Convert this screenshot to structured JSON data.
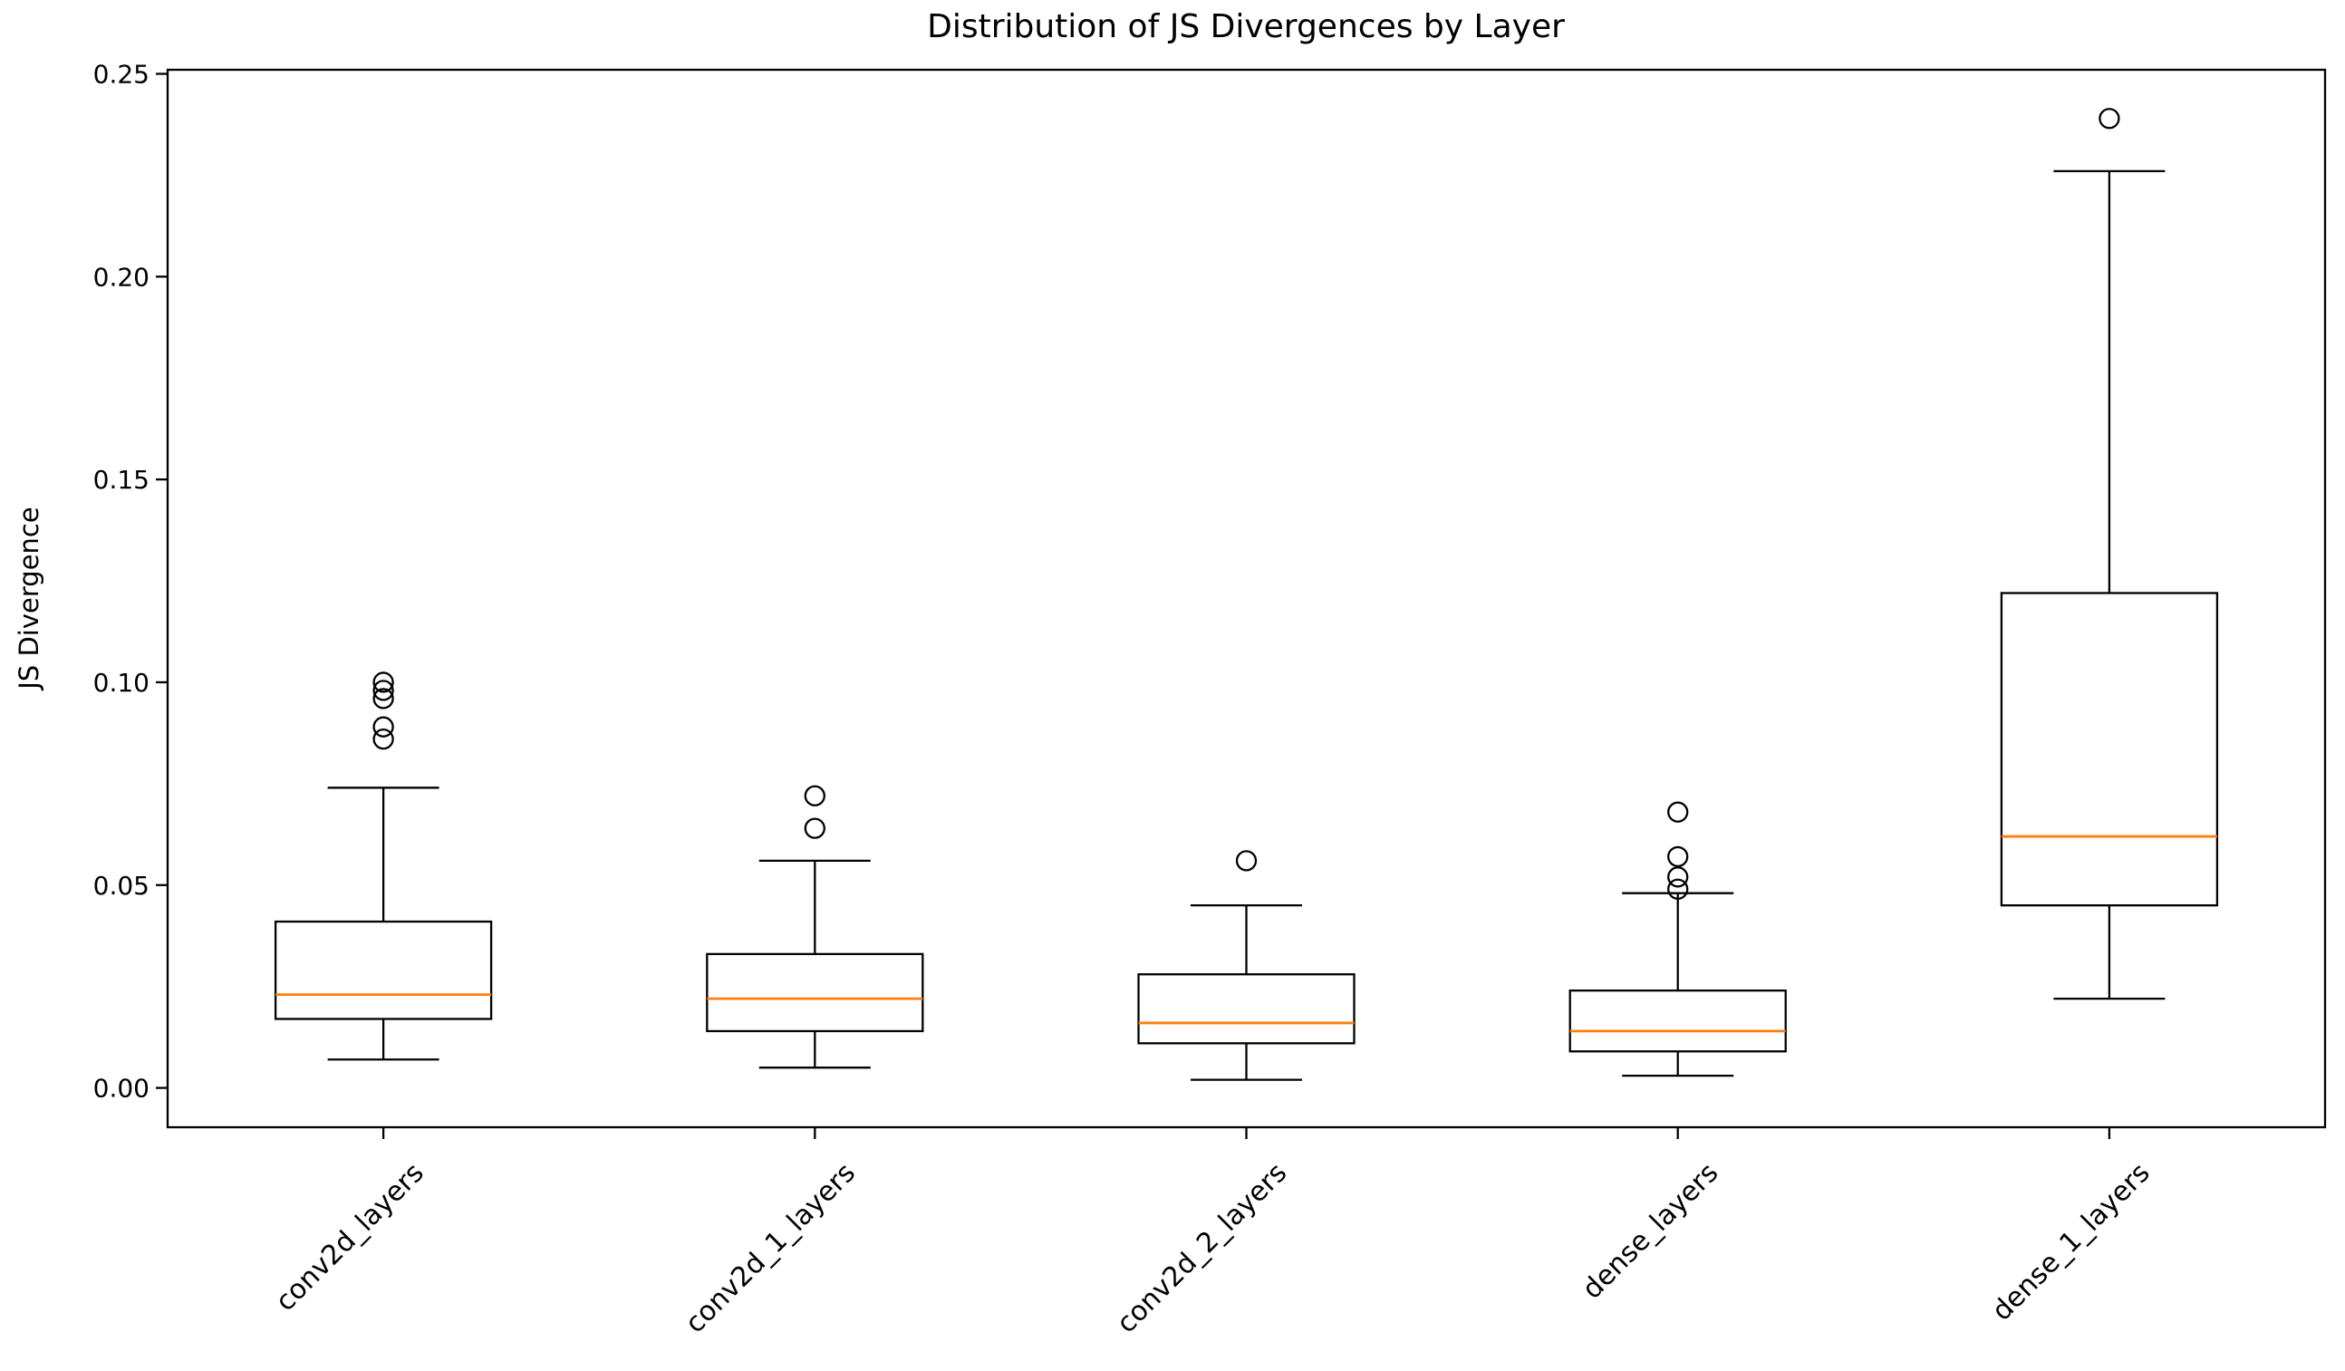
{
  "chart_data": {
    "type": "boxplot",
    "title": "Distribution of JS Divergences by Layer",
    "ylabel": "JS Divergence",
    "xlabel": "",
    "categories": [
      "conv2d_layers",
      "conv2d_1_layers",
      "conv2d_2_layers",
      "dense_layers",
      "dense_1_layers"
    ],
    "ylim": [
      -0.0097,
      0.251
    ],
    "yticks": [
      0.0,
      0.05,
      0.1,
      0.15,
      0.2,
      0.25
    ],
    "grid": false,
    "legend": null,
    "colors": {
      "box_stroke": "#000000",
      "median": "#ff7f0e",
      "background": "#ffffff",
      "text": "#000000"
    },
    "series": [
      {
        "name": "conv2d_layers",
        "whisker_low": 0.007,
        "q1": 0.017,
        "median": 0.023,
        "q3": 0.041,
        "whisker_high": 0.074,
        "outliers": [
          0.086,
          0.089,
          0.096,
          0.098,
          0.1
        ]
      },
      {
        "name": "conv2d_1_layers",
        "whisker_low": 0.005,
        "q1": 0.014,
        "median": 0.022,
        "q3": 0.033,
        "whisker_high": 0.056,
        "outliers": [
          0.064,
          0.072
        ]
      },
      {
        "name": "conv2d_2_layers",
        "whisker_low": 0.002,
        "q1": 0.011,
        "median": 0.016,
        "q3": 0.028,
        "whisker_high": 0.045,
        "outliers": [
          0.056
        ]
      },
      {
        "name": "dense_layers",
        "whisker_low": 0.003,
        "q1": 0.009,
        "median": 0.014,
        "q3": 0.024,
        "whisker_high": 0.048,
        "outliers": [
          0.049,
          0.052,
          0.057,
          0.068
        ]
      },
      {
        "name": "dense_1_layers",
        "whisker_low": 0.022,
        "q1": 0.045,
        "median": 0.062,
        "q3": 0.122,
        "whisker_high": 0.226,
        "outliers": [
          0.239
        ]
      }
    ]
  }
}
